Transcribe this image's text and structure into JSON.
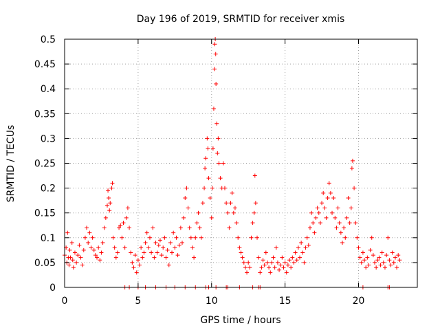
{
  "colors": {
    "marker": "#ff0000",
    "grid": "#a0a0a0",
    "axis": "#000000",
    "background": "#ffffff"
  },
  "chart_data": {
    "type": "scatter",
    "title": "Day 196 of 2019, SRMTID for receiver xmis",
    "xlabel": "GPS time / hours",
    "ylabel": "SRMTID / TECUs",
    "xlim": [
      0,
      24
    ],
    "ylim": [
      0,
      0.5
    ],
    "xticks": [
      0,
      5,
      10,
      15,
      20
    ],
    "xtick_labels": [
      "0",
      "5",
      "10",
      "15",
      "20"
    ],
    "yticks": [
      0,
      0.05,
      0.1,
      0.15,
      0.2,
      0.25,
      0.3,
      0.35,
      0.4,
      0.45,
      0.5
    ],
    "ytick_labels": [
      "0",
      "0.05",
      "0.1",
      "0.15",
      "0.2",
      "0.25",
      "0.3",
      "0.35",
      "0.4",
      "0.45",
      "0.5"
    ],
    "grid": true,
    "legend": "none",
    "marker": "+",
    "series": [
      {
        "name": "SRMTID",
        "points": [
          [
            0.0,
            0.065
          ],
          [
            0.1,
            0.08
          ],
          [
            0.15,
            0.05
          ],
          [
            0.2,
            0.11
          ],
          [
            0.25,
            0.06
          ],
          [
            0.3,
            0.045
          ],
          [
            0.35,
            0.075
          ],
          [
            0.4,
            0.06
          ],
          [
            0.5,
            0.09
          ],
          [
            0.55,
            0.055
          ],
          [
            0.6,
            0.04
          ],
          [
            0.7,
            0.07
          ],
          [
            0.8,
            0.05
          ],
          [
            0.9,
            0.065
          ],
          [
            1.0,
            0.085
          ],
          [
            1.1,
            0.06
          ],
          [
            1.2,
            0.045
          ],
          [
            1.3,
            0.075
          ],
          [
            1.4,
            0.1
          ],
          [
            1.5,
            0.12
          ],
          [
            1.6,
            0.09
          ],
          [
            1.7,
            0.11
          ],
          [
            1.8,
            0.08
          ],
          [
            1.9,
            0.1
          ],
          [
            2.0,
            0.075
          ],
          [
            2.1,
            0.065
          ],
          [
            2.2,
            0.06
          ],
          [
            2.3,
            0.08
          ],
          [
            2.4,
            0.055
          ],
          [
            2.5,
            0.07
          ],
          [
            2.6,
            0.09
          ],
          [
            2.7,
            0.12
          ],
          [
            2.8,
            0.14
          ],
          [
            2.9,
            0.165
          ],
          [
            2.95,
            0.195
          ],
          [
            3.0,
            0.18
          ],
          [
            3.05,
            0.155
          ],
          [
            3.1,
            0.17
          ],
          [
            3.2,
            0.2
          ],
          [
            3.25,
            0.21
          ],
          [
            3.3,
            0.1
          ],
          [
            3.4,
            0.08
          ],
          [
            3.5,
            0.06
          ],
          [
            3.6,
            0.07
          ],
          [
            3.7,
            0.12
          ],
          [
            3.8,
            0.125
          ],
          [
            3.9,
            0.1
          ],
          [
            4.0,
            0.13
          ],
          [
            4.1,
            0.08
          ],
          [
            4.2,
            0.14
          ],
          [
            4.3,
            0.16
          ],
          [
            4.4,
            0.12
          ],
          [
            4.5,
            0.07
          ],
          [
            4.6,
            0.05
          ],
          [
            4.7,
            0.04
          ],
          [
            4.8,
            0.065
          ],
          [
            4.9,
            0.03
          ],
          [
            5.0,
            0.055
          ],
          [
            5.1,
            0.045
          ],
          [
            5.2,
            0.08
          ],
          [
            5.3,
            0.06
          ],
          [
            5.4,
            0.07
          ],
          [
            5.5,
            0.09
          ],
          [
            5.6,
            0.11
          ],
          [
            5.7,
            0.08
          ],
          [
            5.8,
            0.1
          ],
          [
            5.9,
            0.07
          ],
          [
            6.0,
            0.12
          ],
          [
            6.1,
            0.06
          ],
          [
            6.2,
            0.09
          ],
          [
            6.3,
            0.07
          ],
          [
            6.4,
            0.085
          ],
          [
            6.5,
            0.095
          ],
          [
            6.6,
            0.065
          ],
          [
            6.7,
            0.08
          ],
          [
            6.8,
            0.1
          ],
          [
            6.9,
            0.06
          ],
          [
            7.0,
            0.075
          ],
          [
            7.1,
            0.045
          ],
          [
            7.2,
            0.09
          ],
          [
            7.3,
            0.07
          ],
          [
            7.4,
            0.11
          ],
          [
            7.5,
            0.08
          ],
          [
            7.6,
            0.1
          ],
          [
            7.7,
            0.065
          ],
          [
            7.8,
            0.085
          ],
          [
            7.9,
            0.12
          ],
          [
            8.0,
            0.09
          ],
          [
            8.1,
            0.14
          ],
          [
            8.2,
            0.18
          ],
          [
            8.3,
            0.2
          ],
          [
            8.4,
            0.16
          ],
          [
            8.5,
            0.12
          ],
          [
            8.6,
            0.1
          ],
          [
            8.7,
            0.08
          ],
          [
            8.8,
            0.06
          ],
          [
            8.9,
            0.1
          ],
          [
            9.0,
            0.13
          ],
          [
            9.1,
            0.15
          ],
          [
            9.2,
            0.12
          ],
          [
            9.3,
            0.1
          ],
          [
            9.4,
            0.17
          ],
          [
            9.5,
            0.2
          ],
          [
            9.55,
            0.24
          ],
          [
            9.6,
            0.26
          ],
          [
            9.7,
            0.3
          ],
          [
            9.75,
            0.28
          ],
          [
            9.8,
            0.22
          ],
          [
            9.9,
            0.18
          ],
          [
            10.0,
            0.14
          ],
          [
            10.05,
            0.2
          ],
          [
            10.1,
            0.28
          ],
          [
            10.15,
            0.36
          ],
          [
            10.2,
            0.44
          ],
          [
            10.22,
            0.49
          ],
          [
            10.25,
            0.5
          ],
          [
            10.28,
            0.47
          ],
          [
            10.3,
            0.41
          ],
          [
            10.35,
            0.33
          ],
          [
            10.4,
            0.27
          ],
          [
            10.45,
            0.3
          ],
          [
            10.5,
            0.25
          ],
          [
            10.6,
            0.22
          ],
          [
            10.7,
            0.2
          ],
          [
            10.8,
            0.25
          ],
          [
            10.9,
            0.2
          ],
          [
            11.0,
            0.17
          ],
          [
            11.1,
            0.15
          ],
          [
            11.2,
            0.12
          ],
          [
            11.3,
            0.17
          ],
          [
            11.4,
            0.19
          ],
          [
            11.5,
            0.15
          ],
          [
            11.6,
            0.16
          ],
          [
            11.7,
            0.13
          ],
          [
            11.8,
            0.1
          ],
          [
            11.9,
            0.08
          ],
          [
            12.0,
            0.07
          ],
          [
            12.1,
            0.06
          ],
          [
            12.2,
            0.05
          ],
          [
            12.3,
            0.04
          ],
          [
            12.4,
            0.03
          ],
          [
            12.5,
            0.05
          ],
          [
            12.6,
            0.04
          ],
          [
            12.7,
            0.1
          ],
          [
            12.8,
            0.13
          ],
          [
            12.9,
            0.15
          ],
          [
            12.95,
            0.225
          ],
          [
            13.0,
            0.17
          ],
          [
            13.1,
            0.1
          ],
          [
            13.2,
            0.06
          ],
          [
            13.3,
            0.03
          ],
          [
            13.4,
            0.04
          ],
          [
            13.5,
            0.055
          ],
          [
            13.6,
            0.045
          ],
          [
            13.7,
            0.07
          ],
          [
            13.8,
            0.05
          ],
          [
            13.9,
            0.04
          ],
          [
            14.0,
            0.03
          ],
          [
            14.1,
            0.05
          ],
          [
            14.2,
            0.06
          ],
          [
            14.3,
            0.04
          ],
          [
            14.4,
            0.08
          ],
          [
            14.5,
            0.05
          ],
          [
            14.6,
            0.035
          ],
          [
            14.7,
            0.045
          ],
          [
            14.8,
            0.06
          ],
          [
            14.9,
            0.04
          ],
          [
            15.0,
            0.05
          ],
          [
            15.1,
            0.03
          ],
          [
            15.2,
            0.045
          ],
          [
            15.3,
            0.055
          ],
          [
            15.4,
            0.04
          ],
          [
            15.5,
            0.06
          ],
          [
            15.6,
            0.05
          ],
          [
            15.7,
            0.07
          ],
          [
            15.8,
            0.055
          ],
          [
            15.9,
            0.08
          ],
          [
            16.0,
            0.06
          ],
          [
            16.1,
            0.09
          ],
          [
            16.2,
            0.07
          ],
          [
            16.3,
            0.05
          ],
          [
            16.4,
            0.08
          ],
          [
            16.5,
            0.1
          ],
          [
            16.6,
            0.085
          ],
          [
            16.7,
            0.12
          ],
          [
            16.8,
            0.15
          ],
          [
            16.9,
            0.13
          ],
          [
            17.0,
            0.11
          ],
          [
            17.1,
            0.14
          ],
          [
            17.2,
            0.16
          ],
          [
            17.3,
            0.15
          ],
          [
            17.4,
            0.13
          ],
          [
            17.5,
            0.17
          ],
          [
            17.6,
            0.19
          ],
          [
            17.7,
            0.16
          ],
          [
            17.8,
            0.14
          ],
          [
            17.9,
            0.18
          ],
          [
            18.0,
            0.21
          ],
          [
            18.1,
            0.19
          ],
          [
            18.2,
            0.15
          ],
          [
            18.3,
            0.18
          ],
          [
            18.4,
            0.14
          ],
          [
            18.5,
            0.12
          ],
          [
            18.6,
            0.16
          ],
          [
            18.7,
            0.13
          ],
          [
            18.8,
            0.11
          ],
          [
            18.9,
            0.09
          ],
          [
            19.0,
            0.12
          ],
          [
            19.1,
            0.1
          ],
          [
            19.2,
            0.14
          ],
          [
            19.3,
            0.18
          ],
          [
            19.4,
            0.13
          ],
          [
            19.5,
            0.16
          ],
          [
            19.55,
            0.24
          ],
          [
            19.6,
            0.255
          ],
          [
            19.7,
            0.2
          ],
          [
            19.8,
            0.13
          ],
          [
            19.9,
            0.1
          ],
          [
            20.0,
            0.08
          ],
          [
            20.1,
            0.06
          ],
          [
            20.2,
            0.05
          ],
          [
            20.3,
            0.07
          ],
          [
            20.4,
            0.055
          ],
          [
            20.5,
            0.04
          ],
          [
            20.6,
            0.06
          ],
          [
            20.7,
            0.045
          ],
          [
            20.8,
            0.075
          ],
          [
            20.9,
            0.1
          ],
          [
            21.0,
            0.065
          ],
          [
            21.1,
            0.05
          ],
          [
            21.2,
            0.04
          ],
          [
            21.3,
            0.055
          ],
          [
            21.4,
            0.06
          ],
          [
            21.5,
            0.045
          ],
          [
            21.6,
            0.07
          ],
          [
            21.7,
            0.05
          ],
          [
            21.8,
            0.04
          ],
          [
            21.9,
            0.065
          ],
          [
            22.0,
            0.1
          ],
          [
            22.1,
            0.055
          ],
          [
            22.2,
            0.045
          ],
          [
            22.3,
            0.07
          ],
          [
            22.4,
            0.05
          ],
          [
            22.5,
            0.06
          ],
          [
            22.6,
            0.04
          ],
          [
            22.7,
            0.065
          ],
          [
            22.8,
            0.055
          ]
        ],
        "zero_points": [
          4.1,
          4.4,
          5.0,
          5.5,
          6.2,
          6.9,
          7.5,
          8.2,
          8.9,
          9.6,
          9.8,
          10.3,
          11.0,
          11.1,
          11.9,
          12.8,
          13.2,
          13.3,
          20.3,
          22.0,
          22.1
        ]
      }
    ]
  }
}
